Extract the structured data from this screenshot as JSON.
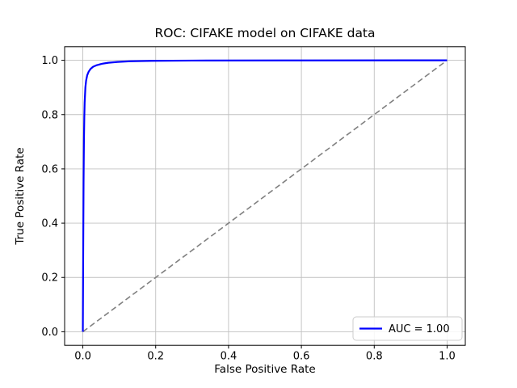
{
  "chart_data": {
    "type": "line",
    "title": "ROC: CIFAKE model on CIFAKE data",
    "xlabel": "False Positive Rate",
    "ylabel": "True Positive Rate",
    "xlim": [
      -0.05,
      1.05
    ],
    "ylim": [
      -0.05,
      1.05
    ],
    "xticks": [
      0.0,
      0.2,
      0.4,
      0.6,
      0.8,
      1.0
    ],
    "yticks": [
      0.0,
      0.2,
      0.4,
      0.6,
      0.8,
      1.0
    ],
    "grid": true,
    "grid_color": "#c0c0c0",
    "spine_color": "#000000",
    "background": "#ffffff",
    "legend": {
      "position": "lower right",
      "border_color": "#cccccc",
      "entries": [
        {
          "label": "AUC = 1.00",
          "color": "#0000ff",
          "style": "solid"
        }
      ]
    },
    "series": [
      {
        "name": "chance-diagonal",
        "color": "#808080",
        "style": "dashed",
        "linewidth": 1.6,
        "x": [
          0.0,
          1.0
        ],
        "y": [
          0.0,
          1.0
        ]
      },
      {
        "name": "roc-curve",
        "color": "#0000ff",
        "style": "solid",
        "linewidth": 2.2,
        "x": [
          0.0,
          0.001,
          0.002,
          0.003,
          0.004,
          0.005,
          0.007,
          0.009,
          0.012,
          0.016,
          0.021,
          0.028,
          0.038,
          0.052,
          0.07,
          0.095,
          0.13,
          0.19,
          0.3,
          0.55,
          1.0
        ],
        "y": [
          0.0,
          0.3,
          0.55,
          0.7,
          0.79,
          0.845,
          0.9,
          0.925,
          0.945,
          0.958,
          0.968,
          0.976,
          0.982,
          0.987,
          0.991,
          0.994,
          0.9965,
          0.998,
          0.999,
          0.9995,
          1.0
        ]
      }
    ]
  }
}
